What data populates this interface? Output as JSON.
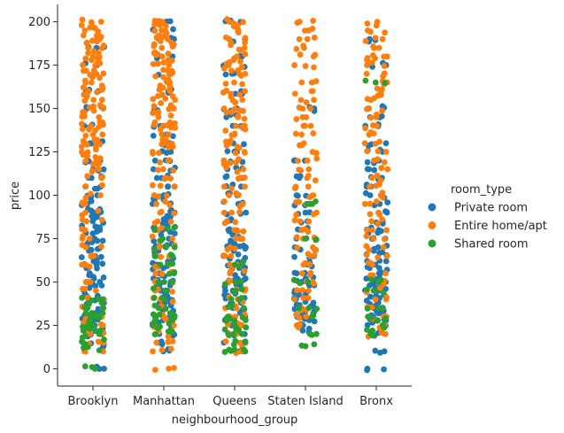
{
  "chart_data": {
    "type": "scatter",
    "subtype": "strip",
    "title": "",
    "xlabel": "neighbourhood_group",
    "ylabel": "price",
    "categories": [
      "Brooklyn",
      "Manhattan",
      "Queens",
      "Staten Island",
      "Bronx"
    ],
    "ylim": [
      -10,
      210
    ],
    "yticks": [
      0,
      25,
      50,
      75,
      100,
      125,
      150,
      175,
      200
    ],
    "grid": false,
    "legend": {
      "title": "room_type",
      "position": "right",
      "entries": [
        "Private room",
        "Entire home/apt",
        "Shared room"
      ]
    },
    "colors": {
      "Private room": "#1f77b4",
      "Entire home/apt": "#ff7f0e",
      "Shared room": "#2ca02c"
    },
    "series": [
      {
        "name": "Private room",
        "points": {
          "Brooklyn": [
            185,
            175,
            160,
            150,
            140,
            130,
            120,
            115,
            110,
            105,
            100,
            98,
            95,
            92,
            90,
            88,
            85,
            82,
            80,
            78,
            75,
            72,
            70,
            68,
            65,
            62,
            60,
            58,
            55,
            52,
            50,
            48,
            45,
            42,
            40,
            38,
            35,
            32,
            30,
            28,
            25,
            22,
            20,
            15,
            12,
            0
          ],
          "Manhattan": [
            200,
            195,
            190,
            180,
            170,
            160,
            150,
            140,
            135,
            130,
            125,
            120,
            115,
            110,
            105,
            100,
            98,
            95,
            90,
            88,
            85,
            82,
            80,
            78,
            75,
            72,
            70,
            68,
            65,
            62,
            60,
            58,
            55,
            52,
            50,
            48,
            45,
            42,
            40,
            38,
            35,
            32,
            30,
            28,
            25,
            20,
            15,
            10
          ],
          "Queens": [
            200,
            190,
            180,
            175,
            170,
            160,
            150,
            145,
            140,
            130,
            125,
            120,
            115,
            110,
            105,
            100,
            95,
            90,
            85,
            80,
            78,
            75,
            72,
            70,
            68,
            65,
            62,
            60,
            58,
            55,
            52,
            50,
            48,
            45,
            42,
            40,
            38,
            35,
            32,
            30,
            28,
            25,
            20,
            15,
            10
          ],
          "Staten Island": [
            150,
            120,
            110,
            100,
            95,
            90,
            85,
            80,
            75,
            70,
            65,
            60,
            55,
            52,
            50,
            48,
            45,
            42,
            40,
            38,
            36,
            35,
            33,
            32,
            30,
            28,
            25,
            22
          ],
          "Bronx": [
            190,
            175,
            150,
            145,
            140,
            130,
            125,
            120,
            115,
            110,
            105,
            100,
            95,
            90,
            85,
            80,
            78,
            75,
            70,
            68,
            65,
            62,
            60,
            58,
            55,
            52,
            50,
            48,
            45,
            42,
            40,
            38,
            36,
            35,
            33,
            32,
            30,
            28,
            25,
            20,
            10,
            0
          ]
        }
      },
      {
        "name": "Entire home/apt",
        "points": {
          "Brooklyn": [
            200,
            198,
            195,
            192,
            190,
            188,
            185,
            182,
            180,
            178,
            175,
            172,
            170,
            168,
            165,
            162,
            160,
            158,
            155,
            152,
            150,
            148,
            145,
            142,
            140,
            138,
            135,
            132,
            130,
            128,
            125,
            122,
            120,
            118,
            115,
            110,
            105,
            100,
            95,
            90,
            85,
            80,
            75,
            70,
            65,
            60,
            50,
            45,
            40,
            35,
            30,
            25,
            20,
            15,
            10
          ],
          "Manhattan": [
            200,
            198,
            195,
            192,
            190,
            188,
            185,
            182,
            180,
            178,
            175,
            172,
            170,
            168,
            165,
            162,
            160,
            158,
            155,
            152,
            150,
            148,
            145,
            142,
            140,
            138,
            135,
            132,
            130,
            128,
            125,
            120,
            115,
            110,
            105,
            100,
            95,
            90,
            85,
            80,
            75,
            70,
            65,
            60,
            55,
            50,
            45,
            40,
            35,
            30,
            25,
            20,
            15,
            10,
            0
          ],
          "Queens": [
            200,
            198,
            195,
            190,
            188,
            185,
            180,
            178,
            175,
            172,
            170,
            165,
            160,
            158,
            155,
            150,
            148,
            145,
            140,
            138,
            135,
            130,
            128,
            125,
            120,
            118,
            115,
            110,
            105,
            100,
            95,
            90,
            85,
            80,
            75,
            70,
            65,
            60,
            55,
            50,
            45,
            40,
            35,
            30,
            25,
            20,
            15,
            10
          ],
          "Staten Island": [
            200,
            195,
            190,
            185,
            180,
            175,
            165,
            160,
            155,
            150,
            145,
            140,
            135,
            130,
            125,
            120,
            115,
            110,
            105,
            100,
            95,
            90,
            85,
            80,
            75,
            70,
            65,
            60,
            55,
            50,
            45,
            40,
            35,
            30,
            25
          ],
          "Bronx": [
            199,
            195,
            190,
            185,
            180,
            178,
            175,
            170,
            165,
            160,
            158,
            155,
            150,
            145,
            140,
            135,
            130,
            125,
            120,
            115,
            110,
            105,
            100,
            95,
            90,
            85,
            80,
            75,
            70,
            65,
            60,
            55,
            50,
            45,
            40,
            35,
            30,
            25,
            20
          ]
        }
      },
      {
        "name": "Shared room",
        "points": {
          "Brooklyn": [
            40,
            38,
            35,
            32,
            30,
            28,
            25,
            23,
            22,
            20,
            18,
            15,
            12,
            0
          ],
          "Manhattan": [
            80,
            75,
            70,
            65,
            60,
            55,
            50,
            45,
            40,
            35,
            32,
            30,
            28,
            25,
            22,
            20
          ],
          "Queens": [
            60,
            50,
            45,
            40,
            35,
            30,
            28,
            25,
            22,
            20,
            15,
            11,
            10
          ],
          "Staten Island": [
            95,
            75,
            50,
            35,
            30,
            20,
            13
          ],
          "Bronx": [
            165,
            50,
            45,
            35,
            30,
            28,
            25,
            22,
            20
          ]
        }
      }
    ]
  }
}
